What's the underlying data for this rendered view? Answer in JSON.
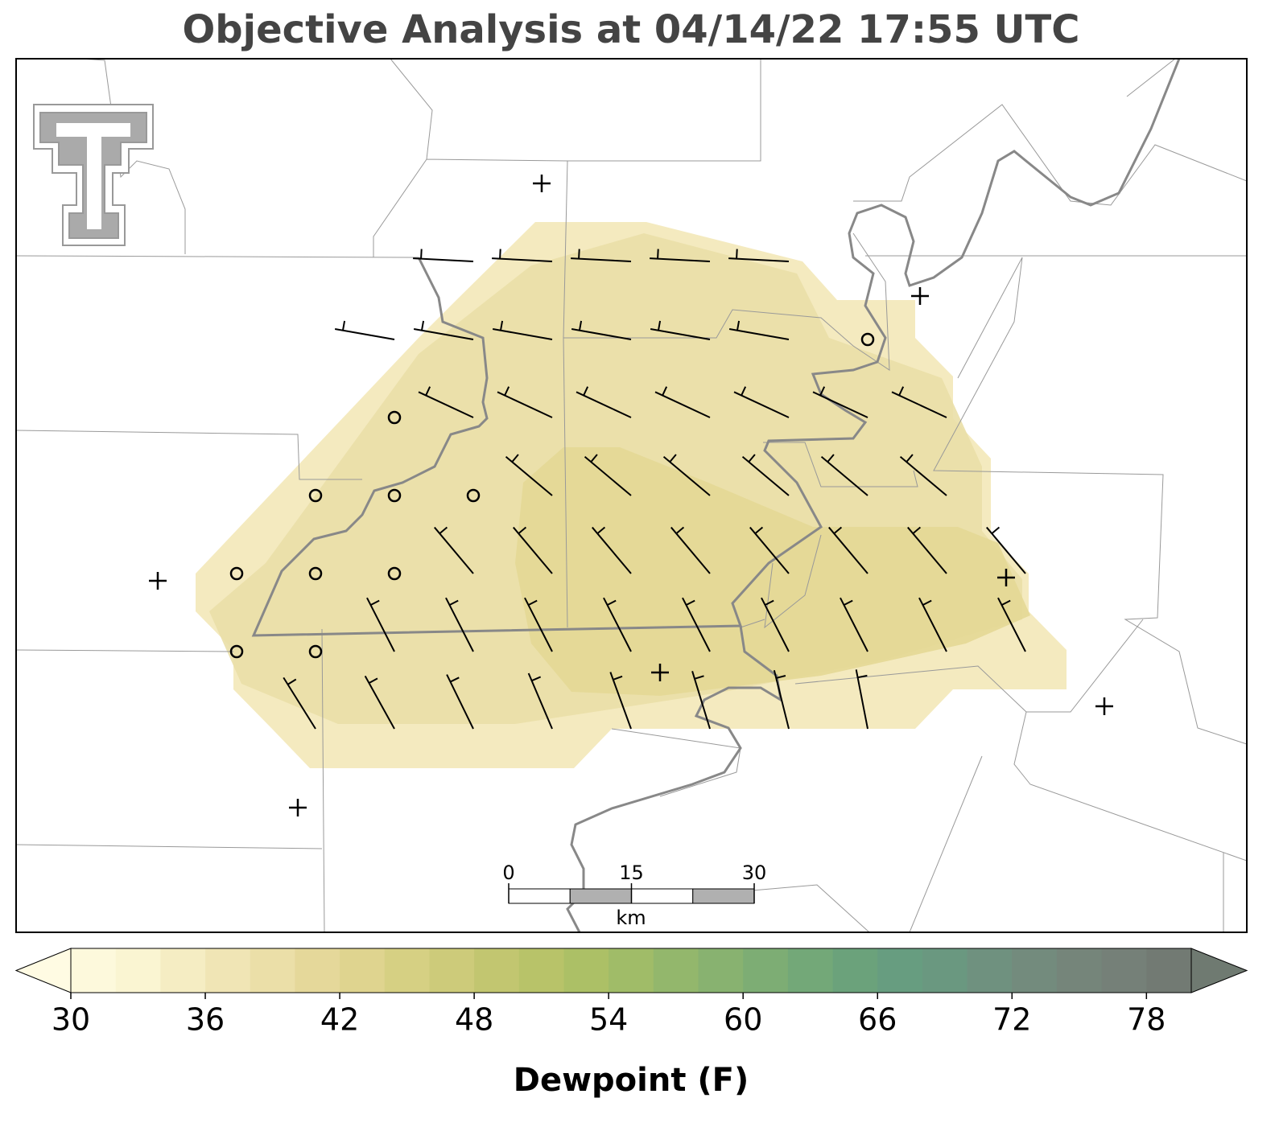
{
  "title": "Objective Analysis at 04/14/22 17:55 UTC",
  "scale_bar": {
    "lim": [
      0,
      30
    ],
    "ticks": [
      0,
      15,
      30
    ],
    "unit": "km"
  },
  "colorbar": {
    "label": "Dewpoint (F)",
    "lim": [
      30,
      80
    ],
    "ticks": [
      30,
      36,
      42,
      48,
      54,
      60,
      66,
      72,
      78
    ],
    "under_color": "#fffbe3",
    "over_color": "#6f7a71",
    "colors": [
      "#fdf9dc",
      "#faf5d2",
      "#f5edc3",
      "#f0e5b5",
      "#ebdfa8",
      "#e5d89a",
      "#dfd48f",
      "#d6d083",
      "#cdcb7a",
      "#c2c670",
      "#b8c369",
      "#acc066",
      "#a0bc68",
      "#93b76c",
      "#88b270",
      "#7dad74",
      "#73a878",
      "#6ba27b",
      "#679d80",
      "#6a9880",
      "#6f917f",
      "#738b7d",
      "#75857a",
      "#758078",
      "#727a73"
    ]
  }
}
